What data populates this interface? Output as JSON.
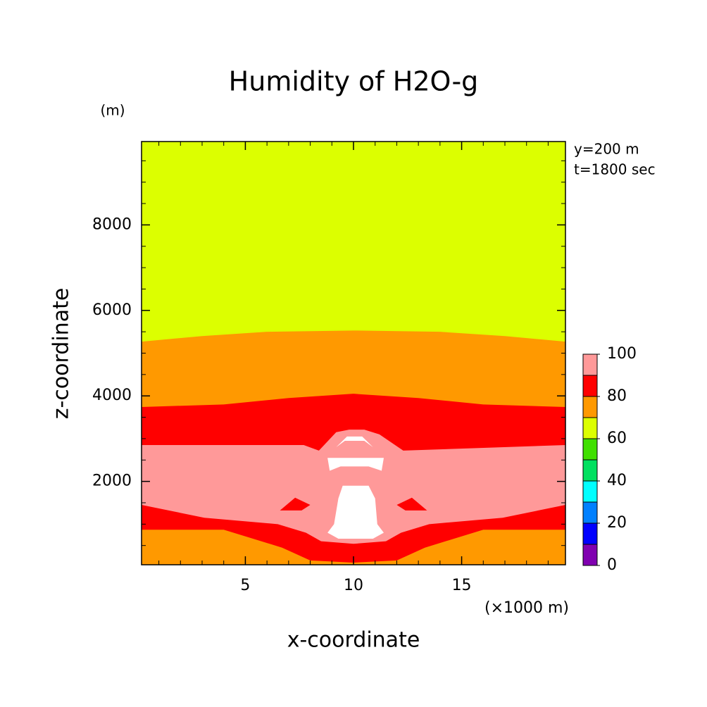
{
  "chart_data": {
    "type": "contour",
    "title": "Humidity of H2O-g",
    "x_label": "x-coordinate",
    "y_label": "z-coordinate",
    "x_unit": "(×1000 m)",
    "y_unit": "(m)",
    "annotations": [
      "y=200 m",
      "t=1800 sec"
    ],
    "xlim": [
      0.2,
      19.8
    ],
    "ylim": [
      50,
      9950
    ],
    "xticks": [
      5,
      10,
      15
    ],
    "yticks": [
      2000,
      4000,
      6000,
      8000
    ],
    "xminorticks": [
      1,
      2,
      3,
      4,
      6,
      7,
      8,
      9,
      11,
      12,
      13,
      14,
      16,
      17,
      18,
      19
    ],
    "yminorticks": [
      500,
      1000,
      1500,
      2500,
      3000,
      3500,
      4500,
      5000,
      5500,
      6500,
      7000,
      7500,
      8500,
      9000,
      9500
    ],
    "regions": [
      {
        "color": "#dcff00",
        "x": [
          0.2,
          19.8,
          19.8,
          0.2
        ],
        "z": [
          9950,
          9950,
          50,
          50
        ]
      },
      {
        "color": "#ff9900",
        "x": [
          0.2,
          3,
          6,
          10,
          14,
          17,
          19.8,
          19.8,
          0.2
        ],
        "z": [
          5270,
          5400,
          5500,
          5530,
          5500,
          5400,
          5270,
          50,
          50
        ]
      },
      {
        "color": "#ff0000",
        "x": [
          0.2,
          4,
          7,
          10,
          13,
          16,
          19.8,
          19.8,
          16,
          13.3,
          12,
          10,
          8,
          6.7,
          4,
          0.2
        ],
        "z": [
          3740,
          3800,
          3950,
          4050,
          3950,
          3800,
          3740,
          870,
          870,
          450,
          150,
          100,
          150,
          450,
          870,
          870
        ]
      },
      {
        "color": "#ff9999",
        "x": [
          0.2,
          7.7,
          8.4,
          9.2,
          9.8,
          10.5,
          11.2,
          12.3,
          19.8,
          19.8,
          16.9,
          13.5,
          12.2,
          11.5,
          10,
          8.5,
          7.8,
          6.5,
          3.1,
          0.2
        ],
        "z": [
          2850,
          2850,
          2720,
          3150,
          3210,
          3210,
          3100,
          2720,
          2850,
          1450,
          1150,
          1000,
          800,
          600,
          540,
          600,
          800,
          1000,
          1150,
          1450
        ]
      },
      {
        "color": "#ff0000",
        "x": [
          6.6,
          7.3,
          8.0,
          7.6
        ],
        "z": [
          1320,
          1620,
          1450,
          1320
        ]
      },
      {
        "color": "#ff0000",
        "x": [
          12.0,
          12.7,
          13.4,
          12.4
        ],
        "z": [
          1450,
          1620,
          1320,
          1320
        ]
      },
      {
        "color": "#ffffff",
        "x": [
          9.2,
          9.7,
          10.4,
          10.9,
          10.5,
          9.6
        ],
        "z": [
          2800,
          3050,
          3050,
          2800,
          2950,
          2950
        ]
      },
      {
        "color": "#ffffff",
        "x": [
          8.8,
          11.4,
          11.3,
          10.7,
          9.4,
          8.9
        ],
        "z": [
          2550,
          2550,
          2250,
          2350,
          2350,
          2250
        ]
      },
      {
        "color": "#ffffff",
        "x": [
          9.5,
          10.7,
          11.0,
          11.1,
          11.4,
          10.9,
          9.3,
          8.8,
          9.1,
          9.3
        ],
        "z": [
          1900,
          1900,
          1600,
          1000,
          800,
          660,
          660,
          800,
          1000,
          1600
        ]
      }
    ],
    "colorbar": {
      "levels": [
        0,
        10,
        20,
        30,
        40,
        50,
        60,
        70,
        80,
        90,
        100
      ],
      "colors": [
        "#8000b0",
        "#0000ff",
        "#0080ff",
        "#00ffff",
        "#00e060",
        "#40e000",
        "#dcff00",
        "#ff9900",
        "#ff0000",
        "#ff9999"
      ],
      "ticks": [
        0,
        20,
        40,
        60,
        80,
        100
      ]
    }
  }
}
